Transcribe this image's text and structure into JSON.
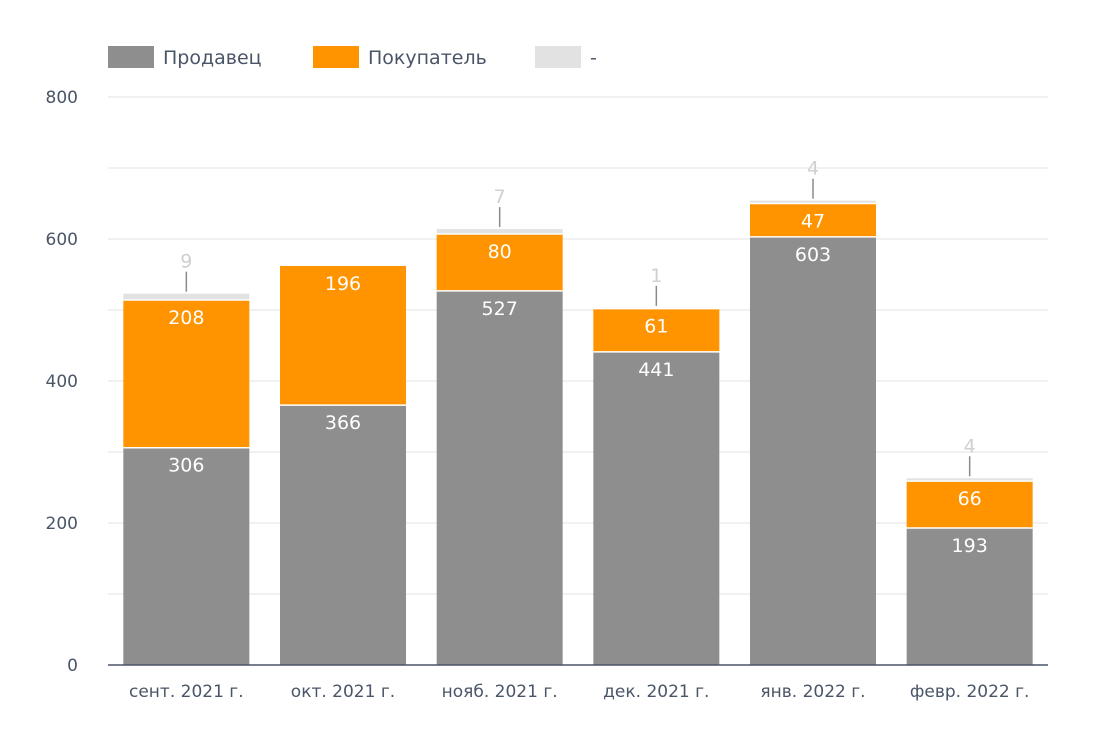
{
  "chart_data": {
    "type": "bar",
    "stacked": true,
    "categories": [
      "сент. 2021 г.",
      "окт. 2021 г.",
      "нояб. 2021 г.",
      "дек. 2021 г.",
      "янв. 2022 г.",
      "февр. 2022 г."
    ],
    "series": [
      {
        "name": "Продавец",
        "color": "#8e8e8e",
        "values": [
          306,
          366,
          527,
          441,
          603,
          193
        ]
      },
      {
        "name": "Покупатель",
        "color": "#ff9400",
        "values": [
          208,
          196,
          80,
          61,
          47,
          66
        ]
      },
      {
        "name": "-",
        "color": "#e2e2e2",
        "values": [
          9,
          null,
          7,
          1,
          4,
          4
        ]
      }
    ],
    "ylim": [
      0,
      800
    ],
    "yticks": [
      0,
      200,
      400,
      600,
      800
    ],
    "grid": true,
    "legend": "top-left",
    "title": "",
    "xlabel": "",
    "ylabel": ""
  }
}
